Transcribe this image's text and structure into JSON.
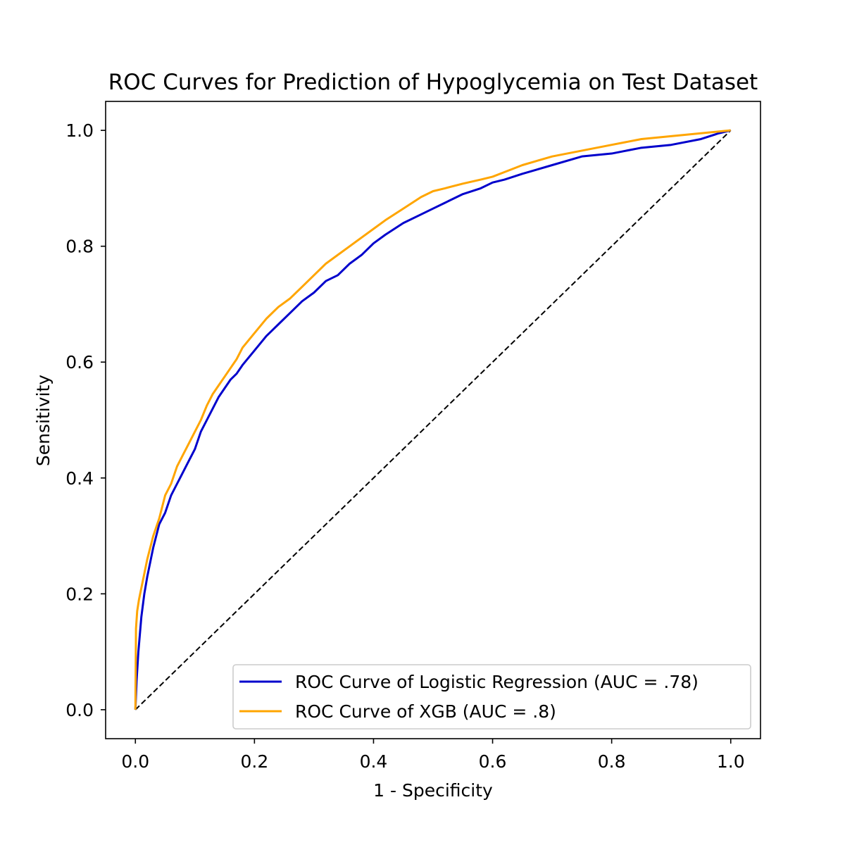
{
  "colors": {
    "logistic": "#0000cc",
    "xgb": "#ffa500",
    "diagonal": "#000000",
    "axes": "#000000",
    "legend_border": "#cccccc"
  },
  "chart_data": {
    "type": "line",
    "title": "ROC Curves for Prediction of Hypoglycemia on Test Dataset",
    "xlabel": "1 - Specificity",
    "ylabel": "Sensitivity",
    "xlim": [
      -0.05,
      1.05
    ],
    "ylim": [
      -0.05,
      1.05
    ],
    "xticks": [
      0.0,
      0.2,
      0.4,
      0.6,
      0.8,
      1.0
    ],
    "yticks": [
      0.0,
      0.2,
      0.4,
      0.6,
      0.8,
      1.0
    ],
    "xtick_labels": [
      "0.0",
      "0.2",
      "0.4",
      "0.6",
      "0.8",
      "1.0"
    ],
    "ytick_labels": [
      "0.0",
      "0.2",
      "0.4",
      "0.6",
      "0.8",
      "1.0"
    ],
    "grid": false,
    "legend_position": "lower-right",
    "series": [
      {
        "name": "ROC Curve of Logistic Regression (AUC = .78)",
        "color": "#0000cc",
        "style": "solid",
        "x": [
          0.0,
          0.002,
          0.005,
          0.01,
          0.015,
          0.02,
          0.03,
          0.04,
          0.05,
          0.06,
          0.07,
          0.08,
          0.09,
          0.1,
          0.11,
          0.12,
          0.13,
          0.14,
          0.15,
          0.16,
          0.17,
          0.18,
          0.2,
          0.22,
          0.24,
          0.26,
          0.28,
          0.3,
          0.32,
          0.34,
          0.36,
          0.38,
          0.4,
          0.42,
          0.45,
          0.48,
          0.5,
          0.52,
          0.55,
          0.58,
          0.6,
          0.62,
          0.65,
          0.7,
          0.75,
          0.8,
          0.85,
          0.9,
          0.95,
          0.98,
          1.0
        ],
        "y": [
          0.0,
          0.05,
          0.1,
          0.16,
          0.2,
          0.23,
          0.28,
          0.32,
          0.34,
          0.37,
          0.39,
          0.41,
          0.43,
          0.45,
          0.48,
          0.5,
          0.52,
          0.54,
          0.555,
          0.57,
          0.58,
          0.595,
          0.62,
          0.645,
          0.665,
          0.685,
          0.705,
          0.72,
          0.74,
          0.75,
          0.77,
          0.785,
          0.805,
          0.82,
          0.84,
          0.855,
          0.865,
          0.875,
          0.89,
          0.9,
          0.91,
          0.915,
          0.925,
          0.94,
          0.955,
          0.96,
          0.97,
          0.975,
          0.985,
          0.995,
          1.0
        ]
      },
      {
        "name": "ROC Curve of XGB (AUC = .8)",
        "color": "#ffa500",
        "style": "solid",
        "x": [
          0.0,
          0.001,
          0.003,
          0.006,
          0.01,
          0.015,
          0.02,
          0.03,
          0.04,
          0.05,
          0.06,
          0.07,
          0.08,
          0.09,
          0.1,
          0.11,
          0.12,
          0.13,
          0.14,
          0.15,
          0.16,
          0.17,
          0.18,
          0.2,
          0.22,
          0.24,
          0.26,
          0.28,
          0.3,
          0.32,
          0.34,
          0.36,
          0.38,
          0.4,
          0.42,
          0.45,
          0.48,
          0.5,
          0.52,
          0.55,
          0.58,
          0.6,
          0.62,
          0.65,
          0.7,
          0.75,
          0.8,
          0.85,
          0.9,
          0.95,
          0.98,
          1.0
        ],
        "y": [
          0.0,
          0.14,
          0.17,
          0.19,
          0.21,
          0.235,
          0.26,
          0.3,
          0.33,
          0.37,
          0.39,
          0.42,
          0.44,
          0.46,
          0.48,
          0.5,
          0.525,
          0.545,
          0.56,
          0.575,
          0.59,
          0.605,
          0.625,
          0.65,
          0.675,
          0.695,
          0.71,
          0.73,
          0.75,
          0.77,
          0.785,
          0.8,
          0.815,
          0.83,
          0.845,
          0.865,
          0.885,
          0.895,
          0.9,
          0.908,
          0.915,
          0.92,
          0.928,
          0.94,
          0.955,
          0.965,
          0.975,
          0.985,
          0.99,
          0.995,
          0.998,
          1.0
        ]
      },
      {
        "name": "",
        "color": "#000000",
        "style": "dashed",
        "x": [
          0.0,
          1.0
        ],
        "y": [
          0.0,
          1.0
        ]
      }
    ]
  }
}
